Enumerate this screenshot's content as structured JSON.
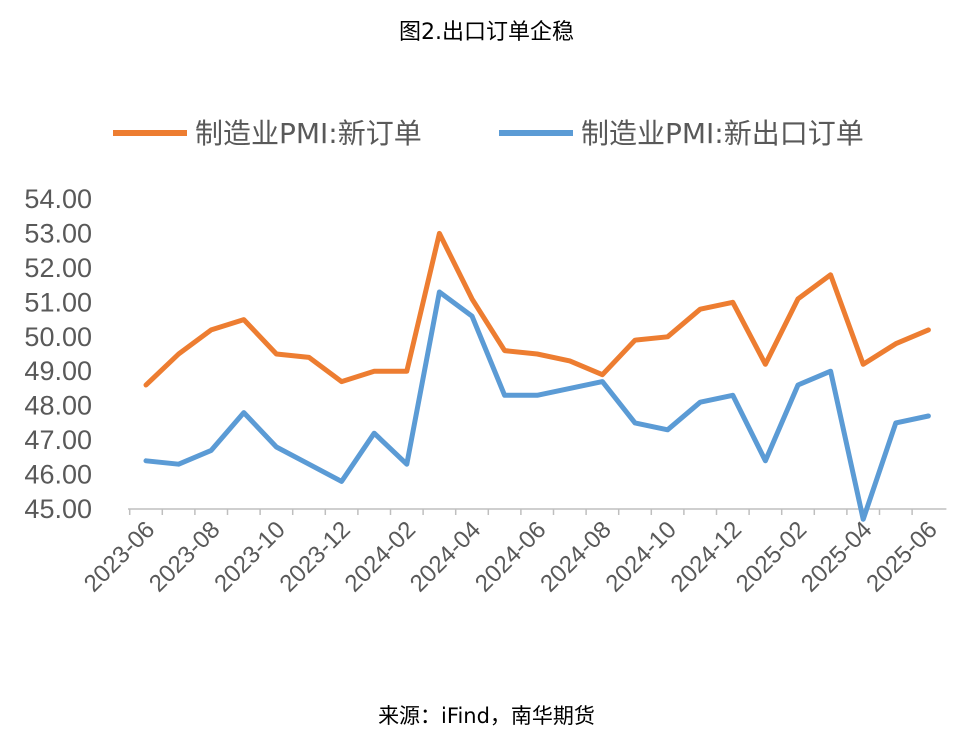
{
  "title": "图2.出口订单企稳",
  "source": "来源：iFind，南华期货",
  "chart_data": {
    "type": "line",
    "ylim": [
      45,
      54
    ],
    "yticks": [
      "54.00",
      "53.00",
      "52.00",
      "51.00",
      "50.00",
      "49.00",
      "48.00",
      "47.00",
      "46.00",
      "45.00"
    ],
    "x": [
      "2023-06",
      "2023-07",
      "2023-08",
      "2023-09",
      "2023-10",
      "2023-11",
      "2023-12",
      "2024-01",
      "2024-02",
      "2024-03",
      "2024-04",
      "2024-05",
      "2024-06",
      "2024-07",
      "2024-08",
      "2024-09",
      "2024-10",
      "2024-11",
      "2024-12",
      "2025-01",
      "2025-02",
      "2025-03",
      "2025-04",
      "2025-05",
      "2025-06"
    ],
    "xtick_labels": [
      "2023-06",
      "2023-08",
      "2023-10",
      "2023-12",
      "2024-02",
      "2024-04",
      "2024-06",
      "2024-08",
      "2024-10",
      "2024-12",
      "2025-02",
      "2025-04",
      "2025-06"
    ],
    "legend_position": "top",
    "series": [
      {
        "name": "制造业PMI:新订单",
        "color": "#ED7D31",
        "values": [
          48.6,
          49.5,
          50.2,
          50.5,
          49.5,
          49.4,
          48.7,
          49.0,
          49.0,
          53.0,
          51.1,
          49.6,
          49.5,
          49.3,
          48.9,
          49.9,
          50.0,
          50.8,
          51.0,
          49.2,
          51.1,
          51.8,
          49.2,
          49.8,
          50.2
        ]
      },
      {
        "name": "制造业PMI:新出口订单",
        "color": "#5B9BD5",
        "values": [
          46.4,
          46.3,
          46.7,
          47.8,
          46.8,
          46.3,
          45.8,
          47.2,
          46.3,
          51.3,
          50.6,
          48.3,
          48.3,
          48.5,
          48.7,
          47.5,
          47.3,
          48.1,
          48.3,
          46.4,
          48.6,
          49.0,
          44.7,
          47.5,
          47.7
        ]
      }
    ]
  }
}
